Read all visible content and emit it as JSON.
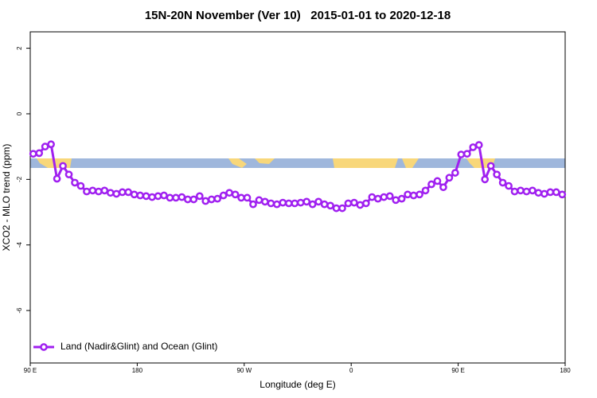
{
  "chart_data": {
    "type": "line",
    "title": "15N-20N November (Ver 10)   2015-01-01 to 2020-12-18",
    "x_label": "Longitude (deg E)",
    "y_label": "XCO2 - MLO trend (ppm)",
    "xlim": [
      90,
      540
    ],
    "ylim": [
      -7.6,
      2.5
    ],
    "xticks": [
      {
        "value": 90,
        "label": "90 E"
      },
      {
        "value": 180,
        "label": "180"
      },
      {
        "value": 270,
        "label": "90 W"
      },
      {
        "value": 360,
        "label": "0"
      },
      {
        "value": 450,
        "label": "90 E"
      },
      {
        "value": 540,
        "label": "180"
      }
    ],
    "yticks": [
      -6,
      -4,
      -2,
      0,
      2
    ],
    "legend": "bottom-left",
    "series": [
      {
        "name": "Land (Nadir&Glint) and Ocean (Glint)",
        "color": "#a020f0",
        "x": [
          92.5,
          97.5,
          102.5,
          107.5,
          112.5,
          117.5,
          122.5,
          127.5,
          132.5,
          137.5,
          142.5,
          147.5,
          152.5,
          157.5,
          162.5,
          167.5,
          172.5,
          177.5,
          182.5,
          187.5,
          192.5,
          197.5,
          202.5,
          207.5,
          212.5,
          217.5,
          222.5,
          227.5,
          232.5,
          237.5,
          242.5,
          247.5,
          252.5,
          257.5,
          262.5,
          267.5,
          272.5,
          277.5,
          282.5,
          287.5,
          292.5,
          297.5,
          302.5,
          307.5,
          312.5,
          317.5,
          322.5,
          327.5,
          332.5,
          337.5,
          342.5,
          347.5,
          352.5,
          357.5,
          362.5,
          367.5,
          372.5,
          377.5,
          382.5,
          387.5,
          392.5,
          397.5,
          402.5,
          407.5,
          412.5,
          417.5,
          422.5,
          427.5,
          432.5,
          437.5,
          442.5,
          447.5,
          452.5,
          457.5,
          462.5,
          467.5,
          472.5,
          477.5,
          482.5,
          487.5,
          492.5,
          497.5,
          502.5,
          507.5,
          512.5,
          517.5,
          522.5,
          527.5,
          532.5,
          537.5
        ],
        "values": [
          -1.22,
          -1.2,
          -1.0,
          -0.93,
          -1.98,
          -1.59,
          -1.85,
          -2.1,
          -2.2,
          -2.37,
          -2.34,
          -2.37,
          -2.34,
          -2.41,
          -2.44,
          -2.39,
          -2.39,
          -2.46,
          -2.49,
          -2.51,
          -2.54,
          -2.51,
          -2.49,
          -2.56,
          -2.56,
          -2.54,
          -2.61,
          -2.61,
          -2.51,
          -2.66,
          -2.61,
          -2.59,
          -2.49,
          -2.41,
          -2.46,
          -2.56,
          -2.56,
          -2.76,
          -2.63,
          -2.68,
          -2.73,
          -2.76,
          -2.71,
          -2.73,
          -2.73,
          -2.71,
          -2.68,
          -2.76,
          -2.68,
          -2.76,
          -2.8,
          -2.88,
          -2.88,
          -2.73,
          -2.71,
          -2.78,
          -2.73,
          -2.54,
          -2.59,
          -2.54,
          -2.51,
          -2.63,
          -2.59,
          -2.46,
          -2.49,
          -2.46,
          -2.34,
          -2.15,
          -2.05,
          -2.24,
          -1.95,
          -1.8,
          -1.24,
          -1.22,
          -1.02,
          -0.95,
          -2.0,
          -1.59,
          -1.85,
          -2.1,
          -2.2,
          -2.37,
          -2.34,
          -2.37,
          -2.34,
          -2.41,
          -2.44,
          -2.39,
          -2.39,
          -2.46
        ]
      }
    ]
  }
}
